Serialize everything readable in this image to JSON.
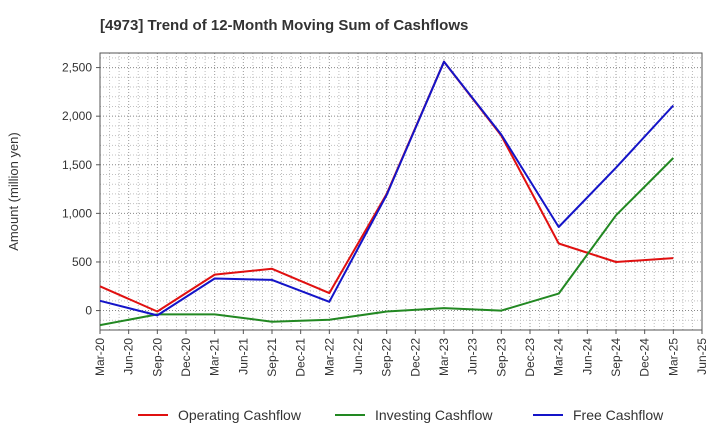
{
  "chart_data": {
    "type": "line",
    "title": "[4973]  Trend of 12-Month Moving Sum of Cashflows",
    "ylabel": "Amount (million yen)",
    "xlabel": "",
    "x_ticks": [
      "Mar-20",
      "Jun-20",
      "Sep-20",
      "Dec-20",
      "Mar-21",
      "Jun-21",
      "Sep-21",
      "Dec-21",
      "Mar-22",
      "Jun-22",
      "Sep-22",
      "Dec-22",
      "Mar-23",
      "Jun-23",
      "Sep-23",
      "Dec-23",
      "Mar-24",
      "Jun-24",
      "Sep-24",
      "Dec-24",
      "Mar-25",
      "Jun-25"
    ],
    "y_ticks": [
      0,
      500,
      1000,
      1500,
      2000,
      2500
    ],
    "y_tick_labels": [
      "0",
      "500",
      "1,000",
      "1,500",
      "2,000",
      "2,500"
    ],
    "ylim": [
      -200,
      2650
    ],
    "grid": true,
    "legend_position": "bottom",
    "categories": [
      "Mar-20",
      "Sep-20",
      "Mar-21",
      "Sep-21",
      "Mar-22",
      "Sep-22",
      "Mar-23",
      "Sep-23",
      "Mar-24",
      "Sep-24",
      "Mar-25"
    ],
    "series": [
      {
        "name": "Operating Cashflow",
        "color": "#e01010",
        "values": [
          250,
          -10,
          370,
          430,
          180,
          1200,
          2560,
          1800,
          690,
          500,
          540
        ]
      },
      {
        "name": "Investing Cashflow",
        "color": "#228822",
        "values": [
          -150,
          -40,
          -40,
          -115,
          -95,
          -10,
          25,
          0,
          175,
          980,
          1570
        ]
      },
      {
        "name": "Free Cashflow",
        "color": "#1414c8",
        "values": [
          100,
          -50,
          330,
          315,
          90,
          1190,
          2560,
          1810,
          860,
          1470,
          2110
        ]
      }
    ]
  }
}
